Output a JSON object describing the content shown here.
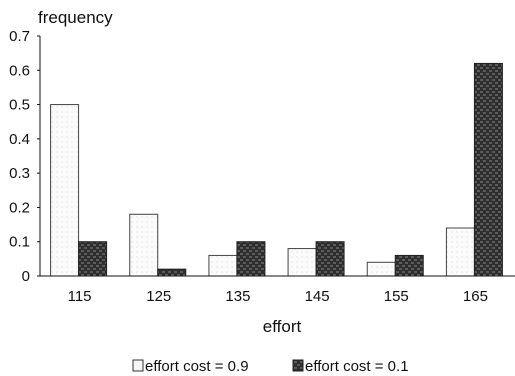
{
  "chart_data": {
    "type": "bar",
    "title": "",
    "ylabel": "frequency",
    "xlabel": "effort",
    "categories": [
      "115",
      "125",
      "135",
      "145",
      "155",
      "165"
    ],
    "series": [
      {
        "name": "effort cost = 0.9",
        "color": "#f4f4f4",
        "values": [
          0.5,
          0.18,
          0.06,
          0.08,
          0.04,
          0.14
        ]
      },
      {
        "name": "effort cost = 0.1",
        "color": "#3a3a3a",
        "values": [
          0.1,
          0.02,
          0.1,
          0.1,
          0.06,
          0.62
        ]
      }
    ],
    "yticks": [
      "0",
      "0.1",
      "0.2",
      "0.3",
      "0.4",
      "0.5",
      "0.6",
      "0.7"
    ],
    "ylim": [
      0,
      0.7
    ],
    "grid": false,
    "legend": "bottom"
  }
}
